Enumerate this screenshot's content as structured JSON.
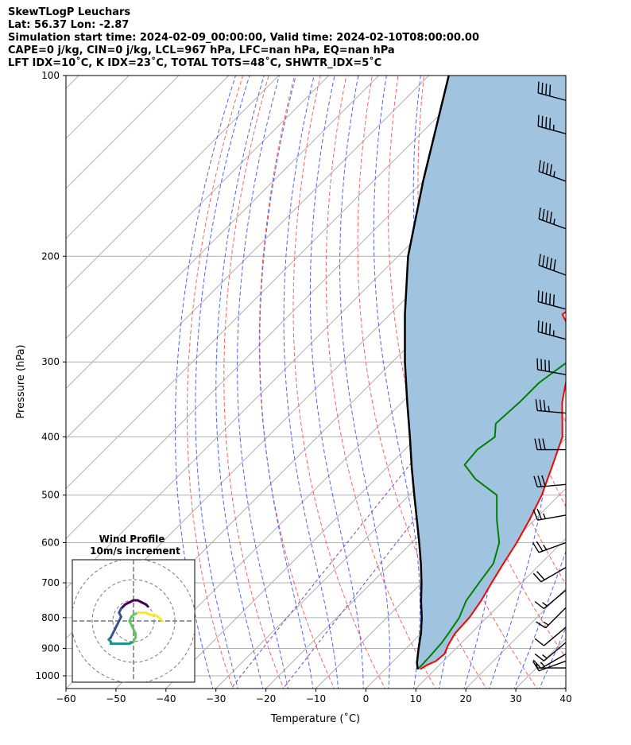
{
  "title": {
    "line1": "SkewTLogP Leuchars",
    "line2": "Lat: 56.37   Lon: -2.87",
    "line3": "Simulation start time: 2024-02-09_00:00:00, Valid time: 2024-02-10T08:00:00.00",
    "line4": "CAPE=0 j/kg, CIN=0 j/kg, LCL=967 hPa, LFC=nan hPa, EQ=nan hPa",
    "line5": "LFT IDX=10˚C, K IDX=23˚C, TOTAL TOTS=48˚C, SHWTR_IDX=5˚C"
  },
  "chart_data": {
    "type": "line",
    "subtype": "skew-t log-p",
    "xlabel": "Temperature (˚C)",
    "ylabel": "Pressure (hPa)",
    "xlim": [
      -60,
      40
    ],
    "ylim": [
      1050,
      100
    ],
    "y_scale": "log",
    "x_ticks": [
      -60,
      -50,
      -40,
      -30,
      -20,
      -10,
      0,
      10,
      20,
      30,
      40
    ],
    "x_tick_labels": [
      "−60",
      "−50",
      "−40",
      "−30",
      "−20",
      "−10",
      "0",
      "10",
      "20",
      "30",
      "40"
    ],
    "y_ticks": [
      1000,
      900,
      800,
      700,
      600,
      500,
      400,
      300,
      200,
      100
    ],
    "grid": true,
    "colors": {
      "temperature": "#ff0000",
      "dewpoint": "#008000",
      "parcel": "#000000",
      "cape_fill": "#a0c4df",
      "dry_adiabat": "#ff6060",
      "moist_adiabat": "#5060ff",
      "mixing_ratio": "#8040c0"
    },
    "series": [
      {
        "name": "Temperature",
        "pressure": [
          975,
          960,
          945,
          920,
          890,
          850,
          800,
          750,
          700,
          650,
          600,
          550,
          500,
          450,
          400,
          350,
          300,
          270,
          250,
          230,
          215,
          200,
          185,
          170,
          155,
          140,
          125,
          112,
          100
        ],
        "temperature": [
          7.0,
          7.5,
          8.5,
          8.8,
          7.8,
          6.8,
          6.5,
          5.5,
          4.0,
          2.5,
          1.0,
          -1.0,
          -3.5,
          -7.0,
          -11.0,
          -18.0,
          -24.5,
          -29.5,
          -35.5,
          -34.0,
          -30.5,
          -29.0,
          -27.5,
          -26.0,
          -24.5,
          -23.0,
          -21.5,
          -20.0,
          -18.0
        ]
      },
      {
        "name": "Dewpoint",
        "pressure": [
          975,
          960,
          920,
          880,
          850,
          800,
          750,
          700,
          650,
          600,
          550,
          500,
          470,
          445,
          420,
          400,
          380,
          350,
          325,
          300,
          280,
          260,
          235,
          215,
          200,
          185,
          170,
          155,
          140,
          125,
          112,
          100
        ],
        "temperature": [
          6.5,
          6.5,
          6.3,
          6.0,
          5.5,
          4.5,
          2.5,
          1.5,
          0.5,
          -2.5,
          -7.5,
          -12.5,
          -20.0,
          -25.0,
          -25.5,
          -24.5,
          -27.0,
          -26.5,
          -26.5,
          -25.0,
          -26.5,
          -28.0,
          -35.0,
          -32.0,
          -30.5,
          -29.0,
          -31.5,
          -31.0,
          -30.0,
          -28.0,
          -26.5,
          -25.0
        ]
      },
      {
        "name": "Parcel",
        "pressure": [
          975,
          950,
          900,
          850,
          800,
          750,
          700,
          650,
          600,
          550,
          500,
          450,
          400,
          350,
          300,
          250,
          200,
          150,
          100
        ],
        "temperature": [
          6.5,
          5.0,
          2.5,
          0.0,
          -3.0,
          -6.5,
          -10.0,
          -14.0,
          -18.5,
          -23.5,
          -29.0,
          -35.0,
          -41.5,
          -49.0,
          -57.5,
          -67.0,
          -78.0,
          -90.0,
          -106.0
        ]
      }
    ],
    "wind_barbs": {
      "pressure": [
        970,
        945,
        920,
        880,
        830,
        770,
        720,
        660,
        600,
        540,
        480,
        420,
        365,
        315,
        275,
        245,
        215,
        180,
        150,
        125,
        110
      ],
      "speed_kt": [
        5,
        10,
        15,
        15,
        10,
        15,
        15,
        20,
        25,
        25,
        30,
        30,
        35,
        40,
        45,
        50,
        50,
        45,
        45,
        45,
        40
      ],
      "direction_deg": [
        270,
        250,
        240,
        230,
        230,
        225,
        230,
        240,
        250,
        260,
        265,
        270,
        275,
        280,
        285,
        285,
        290,
        290,
        290,
        285,
        285
      ]
    },
    "hodograph": {
      "title": "Wind Profile",
      "subtitle": "10m/s increment",
      "u": [
        7,
        6,
        4,
        2,
        0,
        -2,
        -4,
        -5,
        -6,
        -7,
        -6,
        -7,
        -8,
        -9,
        -10,
        -11,
        -12,
        -11,
        -11,
        -10,
        -8,
        -6,
        -4,
        -2,
        0,
        1,
        1,
        0,
        -1,
        -2,
        -1,
        0,
        2,
        4,
        6,
        8,
        10,
        12,
        13,
        14
      ],
      "v": [
        7,
        8,
        9,
        10,
        10,
        9,
        8,
        7,
        6,
        4,
        2,
        0,
        -2,
        -4,
        -6,
        -8,
        -9,
        -10,
        -11,
        -11,
        -11,
        -11,
        -11,
        -11,
        -10,
        -8,
        -6,
        -4,
        -2,
        0,
        2,
        3,
        4,
        4,
        4,
        3,
        3,
        2,
        1,
        0
      ]
    }
  }
}
